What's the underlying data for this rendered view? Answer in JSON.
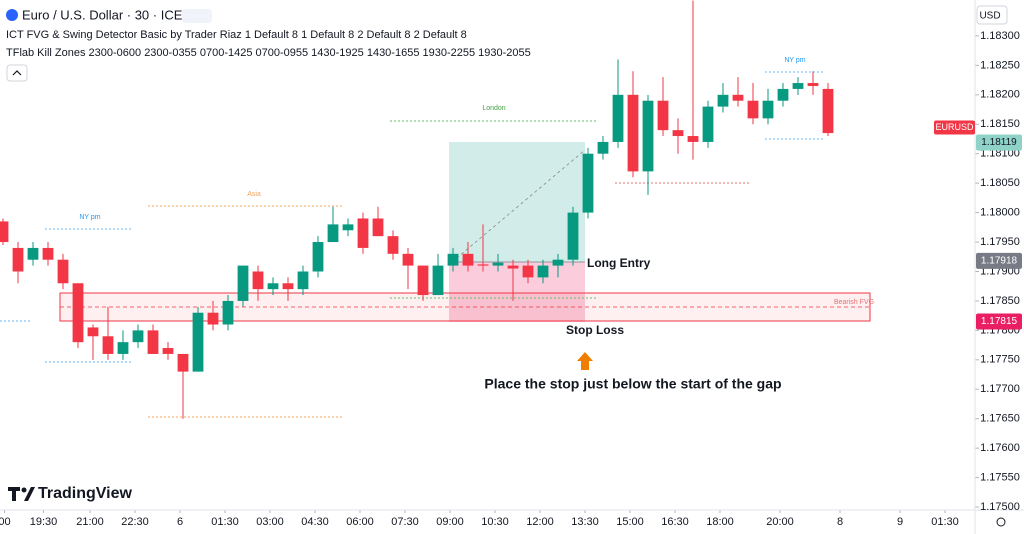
{
  "header": {
    "symbol": "Euro / U.S. Dollar · 30 · ICE",
    "indicator_fvg": "ICT FVG & Swing Detector Basic by Trader Riaz 1 Default 8 1 Default 8 2 Default 8 2 Default 8",
    "indicator_killzones": "TFlab Kill Zones 2300-0600 2300-0355 0700-1425 0700-0955 1430-1925 1430-1655 1930-2255 1930-2055",
    "logo": "TradingView"
  },
  "chart_data": {
    "type": "candlestick",
    "currency": "USD",
    "up_color": "#089981",
    "down_color": "#f23645",
    "open": [
      1.17985,
      1.1794,
      1.1792,
      1.1794,
      1.1792,
      1.1788,
      1.17805,
      1.1779,
      1.1776,
      1.1778,
      1.178,
      1.1777,
      1.1776,
      1.1773,
      1.1783,
      1.1781,
      1.1785,
      1.179,
      1.1787,
      1.1788,
      1.1787,
      1.179,
      1.1795,
      1.1797,
      1.1799,
      1.1799,
      1.1796,
      1.1793,
      1.1791,
      1.1786,
      1.1791,
      1.1793,
      1.17912,
      1.1791,
      1.1791,
      1.1791,
      1.1789,
      1.1791,
      1.1792,
      1.18,
      1.181,
      1.1812,
      1.182,
      1.1807,
      1.1819,
      1.1814,
      1.1813,
      1.1812,
      1.1818,
      1.182,
      1.1819,
      1.1816,
      1.1819,
      1.1821,
      1.1822,
      1.1821
    ],
    "high": [
      1.1799,
      1.1795,
      1.1795,
      1.1795,
      1.1793,
      1.1788,
      1.1781,
      1.1784,
      1.178,
      1.1781,
      1.1781,
      1.1778,
      1.1776,
      1.1784,
      1.1785,
      1.1786,
      1.1791,
      1.1791,
      1.1789,
      1.1789,
      1.1791,
      1.1796,
      1.1801,
      1.1799,
      1.18,
      1.1801,
      1.1797,
      1.1794,
      1.1791,
      1.1793,
      1.1794,
      1.1795,
      1.1798,
      1.1793,
      1.1792,
      1.1792,
      1.1792,
      1.1793,
      1.1801,
      1.1811,
      1.1813,
      1.1826,
      1.1824,
      1.182,
      1.1823,
      1.1816,
      1.1836,
      1.1819,
      1.1822,
      1.1823,
      1.1822,
      1.1821,
      1.1822,
      1.1823,
      1.1824,
      1.1822
    ],
    "low": [
      1.17945,
      1.1788,
      1.1791,
      1.1791,
      1.1787,
      1.1777,
      1.1775,
      1.1775,
      1.1775,
      1.1777,
      1.1776,
      1.1775,
      1.1765,
      1.1773,
      1.178,
      1.178,
      1.1784,
      1.1785,
      1.1786,
      1.1785,
      1.1786,
      1.1789,
      1.1795,
      1.1796,
      1.1793,
      1.1796,
      1.1792,
      1.1787,
      1.1785,
      1.1786,
      1.179,
      1.179,
      1.179,
      1.179,
      1.1785,
      1.1788,
      1.1788,
      1.1789,
      1.1791,
      1.1799,
      1.1809,
      1.1811,
      1.1806,
      1.1803,
      1.1813,
      1.181,
      1.1809,
      1.1811,
      1.1817,
      1.1818,
      1.1815,
      1.1815,
      1.1818,
      1.182,
      1.182,
      1.1813
    ],
    "close": [
      1.1795,
      1.179,
      1.1794,
      1.1792,
      1.1788,
      1.1778,
      1.1779,
      1.1776,
      1.1778,
      1.178,
      1.1776,
      1.1776,
      1.1773,
      1.1783,
      1.1781,
      1.1785,
      1.1791,
      1.1787,
      1.1788,
      1.1787,
      1.179,
      1.1795,
      1.1798,
      1.1798,
      1.1794,
      1.1796,
      1.1793,
      1.1791,
      1.1786,
      1.1791,
      1.1793,
      1.1791,
      1.1791,
      1.17915,
      1.17905,
      1.1789,
      1.1791,
      1.1792,
      1.18,
      1.181,
      1.1812,
      1.182,
      1.1807,
      1.1819,
      1.1814,
      1.1813,
      1.1812,
      1.1818,
      1.182,
      1.1819,
      1.1816,
      1.1819,
      1.1821,
      1.1822,
      1.18215,
      1.18135
    ],
    "xlim": [
      -0.2,
      64.8
    ],
    "xticks": [
      {
        "value": 0.1,
        "label": "00"
      },
      {
        "value": 2.7,
        "label": "19:30"
      },
      {
        "value": 5.8,
        "label": "21:00"
      },
      {
        "value": 8.8,
        "label": "22:30"
      },
      {
        "value": 11.8,
        "label": "6"
      },
      {
        "value": 14.8,
        "label": "01:30"
      },
      {
        "value": 17.8,
        "label": "03:00"
      },
      {
        "value": 20.8,
        "label": "04:30"
      },
      {
        "value": 23.8,
        "label": "06:00"
      },
      {
        "value": 26.8,
        "label": "07:30"
      },
      {
        "value": 29.8,
        "label": "09:00"
      },
      {
        "value": 32.8,
        "label": "10:30"
      },
      {
        "value": 35.8,
        "label": "12:00"
      },
      {
        "value": 38.8,
        "label": "13:30"
      },
      {
        "value": 41.8,
        "label": "15:00"
      },
      {
        "value": 44.8,
        "label": "16:30"
      },
      {
        "value": 47.8,
        "label": "18:00"
      },
      {
        "value": 51.8,
        "label": "20:00"
      },
      {
        "value": 55.8,
        "label": "8"
      },
      {
        "value": 59.8,
        "label": "9"
      },
      {
        "value": 62.8,
        "label": "01:30"
      }
    ],
    "ylim": [
      1.17495,
      1.18361
    ],
    "yticks": [
      {
        "value": 1.183,
        "label": "1.18300"
      },
      {
        "value": 1.1825,
        "label": "1.18250"
      },
      {
        "value": 1.182,
        "label": "1.18200"
      },
      {
        "value": 1.1815,
        "label": "1.18150"
      },
      {
        "value": 1.181,
        "label": "1.18100"
      },
      {
        "value": 1.1805,
        "label": "1.18050"
      },
      {
        "value": 1.18,
        "label": "1.18000"
      },
      {
        "value": 1.1795,
        "label": "1.17950"
      },
      {
        "value": 1.179,
        "label": "1.17900"
      },
      {
        "value": 1.1785,
        "label": "1.17850"
      },
      {
        "value": 1.178,
        "label": "1.17800"
      },
      {
        "value": 1.1775,
        "label": "1.17750"
      },
      {
        "value": 1.177,
        "label": "1.17700"
      },
      {
        "value": 1.1765,
        "label": "1.17650"
      },
      {
        "value": 1.176,
        "label": "1.17600"
      },
      {
        "value": 1.1755,
        "label": "1.17550"
      },
      {
        "value": 1.175,
        "label": "1.17500"
      }
    ],
    "symbol_label": "EURUSD",
    "price_labels": [
      {
        "value": 1.18119,
        "color": "#8fd3c8",
        "text_color": "#131722"
      },
      {
        "value": 1.17918,
        "color": "#787b86",
        "text_color": "#ffffff"
      },
      {
        "value": 1.17815,
        "color": "#e91e63",
        "text_color": "#ffffff"
      }
    ],
    "annotations": [
      "Asia",
      "London",
      "NY pm",
      "NY pm",
      "Bearish FVG",
      "Long Entry",
      "Stop Loss",
      "Place the stop just below the start of the gap"
    ]
  }
}
